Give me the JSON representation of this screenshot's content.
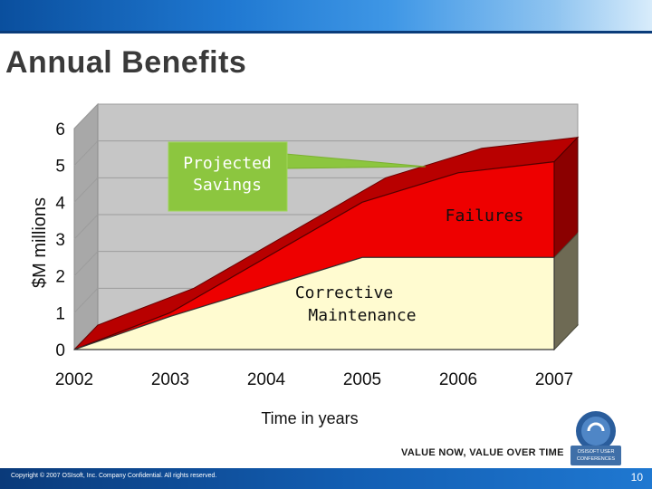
{
  "slide": {
    "title": "Annual Benefits",
    "tagline": "VALUE NOW, VALUE OVER TIME",
    "copyright": "Copyright © 2007 OSIsoft, Inc. Company Confidential. All rights reserved.",
    "page_number": "10",
    "logo_text": [
      "OSISOFT USER",
      "CONFERENCES"
    ]
  },
  "colors": {
    "banner": "#1f78d1",
    "corrective_fill": "#fffbd0",
    "failures_fill": "#ee0000",
    "failures_dark": "#8b0000",
    "savings_box": "#8cc63f",
    "wall": "#c0c0c0"
  },
  "chart_data": {
    "type": "area",
    "stacked": true,
    "x": [
      2002,
      2003,
      2004,
      2005,
      2006,
      2007
    ],
    "x_tick_labels": [
      "2002",
      "2003",
      "2004",
      "2005",
      "2006",
      "2007"
    ],
    "y_ticks": [
      "0",
      "1",
      "2",
      "3",
      "4",
      "5",
      "6"
    ],
    "ylim": [
      0,
      6
    ],
    "xlabel": "Time in years",
    "ylabel": "$M millions",
    "grid": true,
    "series": [
      {
        "name": "Corrective Maintenance",
        "x": [
          2002,
          2003,
          2005,
          2007
        ],
        "values": [
          0,
          0.9,
          2.5,
          2.5
        ]
      },
      {
        "name": "Failures",
        "x": [
          2002,
          2003,
          2005,
          2006,
          2007
        ],
        "values": [
          0,
          0.1,
          1.5,
          2.3,
          2.6
        ]
      }
    ],
    "annotations": [
      {
        "text": "Projected Savings"
      },
      {
        "text": "Failures"
      },
      {
        "text": "Corrective Maintenance"
      }
    ]
  }
}
